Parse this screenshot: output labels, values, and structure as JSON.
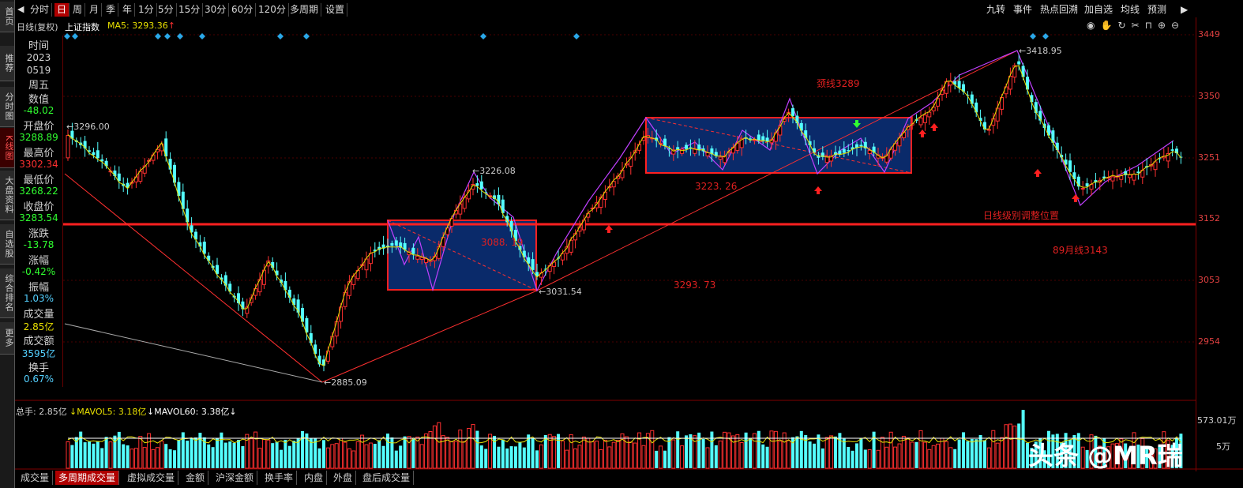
{
  "left_tabs": [
    {
      "label": "首页",
      "active": false
    },
    {
      "label": "推荐",
      "active": false
    },
    {
      "label": "分时图",
      "active": false
    },
    {
      "label": "K线图",
      "active": true
    },
    {
      "label": "大盘资料",
      "active": false
    },
    {
      "label": "自选股",
      "active": false
    },
    {
      "label": "综合排名",
      "active": false
    },
    {
      "label": "更多",
      "active": false
    }
  ],
  "toolbar": {
    "tabs": [
      {
        "label": "分时",
        "active": false
      },
      {
        "label": "日",
        "active": true
      },
      {
        "label": "周",
        "active": false
      },
      {
        "label": "月",
        "active": false
      },
      {
        "label": "季",
        "active": false
      },
      {
        "label": "年",
        "active": false
      },
      {
        "label": "1分",
        "active": false
      },
      {
        "label": "5分",
        "active": false
      },
      {
        "label": "15分",
        "active": false
      },
      {
        "label": "30分",
        "active": false
      },
      {
        "label": "60分",
        "active": false
      },
      {
        "label": "120分",
        "active": false
      },
      {
        "label": "多周期",
        "active": false
      },
      {
        "label": "设置",
        "active": false
      }
    ],
    "right_buttons": [
      "九转",
      "事件",
      "热点回溯",
      "加自选",
      "均线",
      "预测"
    ]
  },
  "chart_header": {
    "period": "日线(复权)",
    "name": "上证指数",
    "ma5": "MA5: 3293.36"
  },
  "info_panel": {
    "time_label": "时间",
    "year": "2023",
    "date": "0519",
    "weekday": "周五",
    "value_label": "数值",
    "value": "-48.02",
    "open_label": "开盘价",
    "open": "3288.89",
    "high_label": "最高价",
    "high": "3302.34",
    "low_label": "最低价",
    "low": "3268.22",
    "close_label": "收盘价",
    "close": "3283.54",
    "change_label": "涨跌",
    "change": "-13.78",
    "pct_label": "涨幅",
    "pct": "-0.42%",
    "amp_label": "振幅",
    "amp": "1.03%",
    "vol_label": "成交量",
    "vol": "2.85亿",
    "amt_label": "成交额",
    "amt": "3595亿",
    "turn_label": "换手",
    "turn": "0.67%"
  },
  "price_axis": [
    "3449",
    "3350",
    "3251",
    "3152",
    "3053",
    "2954"
  ],
  "annotations": {
    "peak_left": "3296.00",
    "peak_mid": "3226.08",
    "trough_low": "2885.09",
    "trough_mid": "3031.54",
    "peak_high": "3418.95",
    "neckline": "颈线3289",
    "box_low": "3223. 26",
    "box_mid": "3088. 19",
    "lower_val": "3293. 73",
    "adjust": "日线级别调整位置",
    "ma89": "89月线3143"
  },
  "volume": {
    "total": "总手: 2.85亿",
    "mavol5": "↓MAVOL5: 3.18亿",
    "mavol60": "↓MAVOL60: 3.38亿↓",
    "axis_top": "573.01万",
    "axis_mid": "5万"
  },
  "bottom_tabs": [
    {
      "label": "成交量",
      "active": false
    },
    {
      "label": "多周期成交量",
      "active": true
    },
    {
      "label": "虚拟成交量",
      "active": false
    },
    {
      "label": "金额",
      "active": false
    },
    {
      "label": "沪深金额",
      "active": false
    },
    {
      "label": "换手率",
      "active": false
    },
    {
      "label": "内盘",
      "active": false
    },
    {
      "label": "外盘",
      "active": false
    },
    {
      "label": "盘后成交量",
      "active": false
    }
  ],
  "watermark": "头条 @MR瑞",
  "colors": {
    "up": "#ff3030",
    "down": "#54ffff",
    "ma": "#e8e000",
    "box": "#ff2020",
    "fill": "#0a2a6a",
    "wave": "#c040ff"
  }
}
